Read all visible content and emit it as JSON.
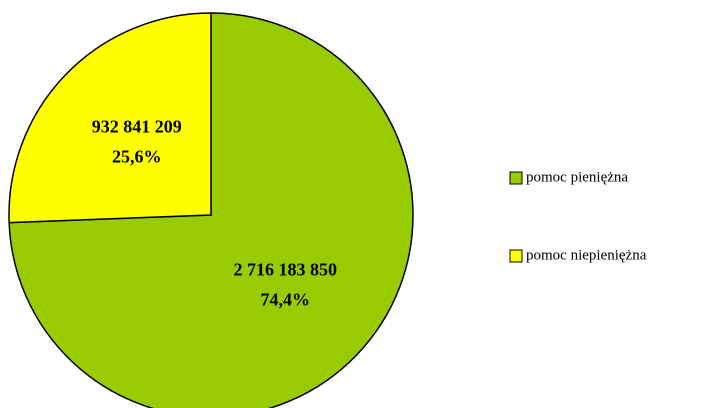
{
  "chart_data": {
    "type": "pie",
    "categories": [
      "pomoc pieniężna",
      "pomoc niepieniężna"
    ],
    "values": [
      74.4,
      25.6
    ],
    "value_labels": [
      "74,4%",
      "25,6%"
    ],
    "amounts": [
      2716183850,
      932841209
    ],
    "amount_labels": [
      "2 716 183 850",
      "932 841 209"
    ],
    "colors": [
      "#99cc00",
      "#ffff00"
    ],
    "legend": "right"
  }
}
